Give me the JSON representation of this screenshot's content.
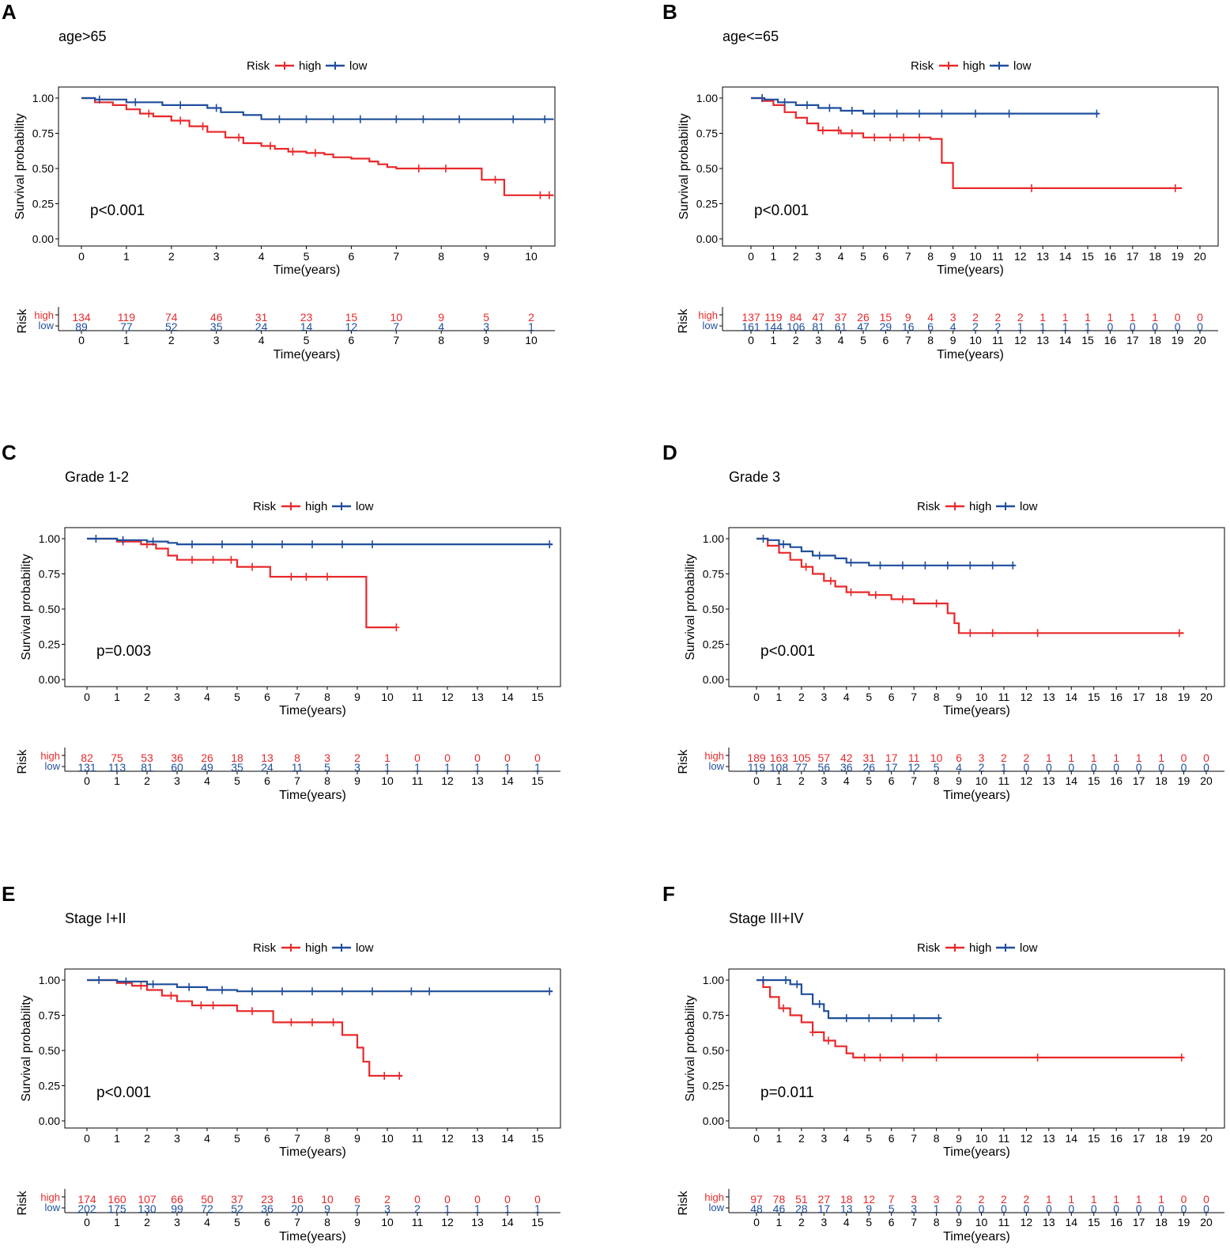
{
  "colors": {
    "high": "#e8292b",
    "low": "#1f4e9c",
    "axis": "#000000",
    "text": "#000000"
  },
  "common": {
    "legend_title": "Risk",
    "legend_high": "high",
    "legend_low": "low",
    "ylabel": "Survival probability",
    "xlabel": "Time(years)",
    "table_ylabel": "Risk",
    "table_row_high": "high",
    "table_row_low": "low",
    "yticks": [
      "0.00",
      "0.25",
      "0.50",
      "0.75",
      "1.00"
    ]
  },
  "chart_data": [
    {
      "panel": "A",
      "type": "line",
      "title": "age>65",
      "pvalue": "p<0.001",
      "xlim": [
        0,
        10
      ],
      "ylim": [
        0,
        1
      ],
      "xticks": [
        "0",
        "1",
        "2",
        "3",
        "4",
        "5",
        "6",
        "7",
        "8",
        "9",
        "10"
      ],
      "series": [
        {
          "name": "high",
          "x": [
            0,
            0.3,
            0.7,
            1.0,
            1.3,
            1.6,
            2.0,
            2.4,
            2.8,
            3.2,
            3.6,
            4.0,
            4.3,
            4.6,
            5.0,
            5.4,
            5.6,
            6.0,
            6.4,
            6.6,
            6.8,
            7.0,
            7.3,
            7.6,
            8.0,
            8.4,
            8.9,
            9.1,
            9.4,
            10.5
          ],
          "y": [
            1.0,
            0.97,
            0.95,
            0.92,
            0.89,
            0.87,
            0.84,
            0.8,
            0.76,
            0.72,
            0.68,
            0.66,
            0.64,
            0.62,
            0.61,
            0.6,
            0.58,
            0.57,
            0.55,
            0.53,
            0.51,
            0.5,
            0.5,
            0.5,
            0.5,
            0.5,
            0.42,
            0.42,
            0.31,
            0.31
          ],
          "censors": [
            1.5,
            2.2,
            2.7,
            3.5,
            4.2,
            4.7,
            5.2,
            7.5,
            8.1,
            9.2,
            10.2,
            10.4
          ]
        },
        {
          "name": "low",
          "x": [
            0,
            0.3,
            1.0,
            1.8,
            2.8,
            3.1,
            3.6,
            4.0,
            10.5
          ],
          "y": [
            1.0,
            0.99,
            0.97,
            0.95,
            0.93,
            0.9,
            0.88,
            0.85,
            0.85
          ],
          "censors": [
            0.4,
            1.2,
            2.2,
            3.0,
            4.4,
            5.0,
            5.6,
            6.2,
            7.0,
            7.6,
            8.4,
            9.6,
            10.3
          ]
        }
      ],
      "risk_table": {
        "times": [
          "0",
          "1",
          "2",
          "3",
          "4",
          "5",
          "6",
          "7",
          "8",
          "9",
          "10"
        ],
        "high": [
          "134",
          "119",
          "74",
          "46",
          "31",
          "23",
          "15",
          "10",
          "9",
          "5",
          "2"
        ],
        "low": [
          "89",
          "77",
          "52",
          "35",
          "24",
          "14",
          "12",
          "7",
          "4",
          "3",
          "1"
        ]
      }
    },
    {
      "panel": "B",
      "type": "line",
      "title": "age<=65",
      "pvalue": "p<0.001",
      "xlim": [
        0,
        20
      ],
      "ylim": [
        0,
        1
      ],
      "xticks": [
        "0",
        "1",
        "2",
        "3",
        "4",
        "5",
        "6",
        "7",
        "8",
        "9",
        "10",
        "11",
        "12",
        "13",
        "14",
        "15",
        "16",
        "17",
        "18",
        "19",
        "20"
      ],
      "series": [
        {
          "name": "high",
          "x": [
            0,
            0.5,
            1.0,
            1.5,
            2.0,
            2.5,
            3.0,
            4.0,
            5.0,
            8.0,
            8.5,
            9.0,
            19.2
          ],
          "y": [
            1.0,
            0.98,
            0.95,
            0.9,
            0.86,
            0.82,
            0.77,
            0.75,
            0.72,
            0.71,
            0.54,
            0.36,
            0.36
          ],
          "censors": [
            3.2,
            3.9,
            4.5,
            5.5,
            6.2,
            6.8,
            7.5,
            12.5,
            18.9
          ]
        },
        {
          "name": "low",
          "x": [
            0,
            0.6,
            1.2,
            2.0,
            3.0,
            4.0,
            5.0,
            15.5
          ],
          "y": [
            1.0,
            0.99,
            0.97,
            0.95,
            0.93,
            0.91,
            0.89,
            0.89
          ],
          "censors": [
            0.5,
            1.5,
            2.5,
            3.5,
            4.5,
            5.5,
            6.5,
            7.5,
            8.5,
            10.0,
            11.5,
            15.4
          ]
        }
      ],
      "risk_table": {
        "times": [
          "0",
          "1",
          "2",
          "3",
          "4",
          "5",
          "6",
          "7",
          "8",
          "9",
          "10",
          "11",
          "12",
          "13",
          "14",
          "15",
          "16",
          "17",
          "18",
          "19",
          "20"
        ],
        "high": [
          "137",
          "119",
          "84",
          "47",
          "37",
          "26",
          "15",
          "9",
          "4",
          "3",
          "2",
          "2",
          "2",
          "1",
          "1",
          "1",
          "1",
          "1",
          "1",
          "0",
          "0"
        ],
        "low": [
          "161",
          "144",
          "106",
          "81",
          "61",
          "47",
          "29",
          "16",
          "6",
          "4",
          "2",
          "2",
          "1",
          "1",
          "1",
          "1",
          "0",
          "0",
          "0",
          "0",
          "0"
        ]
      }
    },
    {
      "panel": "C",
      "type": "line",
      "title": "Grade 1-2",
      "pvalue": "p=0.003",
      "xlim": [
        0,
        15
      ],
      "ylim": [
        0,
        1
      ],
      "xticks": [
        "0",
        "1",
        "2",
        "3",
        "4",
        "5",
        "6",
        "7",
        "8",
        "9",
        "10",
        "11",
        "12",
        "13",
        "14",
        "15"
      ],
      "series": [
        {
          "name": "high",
          "x": [
            0,
            1.0,
            1.8,
            2.3,
            2.7,
            3.0,
            5.0,
            6.1,
            9.3,
            10.3
          ],
          "y": [
            1.0,
            0.98,
            0.96,
            0.93,
            0.88,
            0.85,
            0.8,
            0.73,
            0.37,
            0.37
          ],
          "censors": [
            1.2,
            2.0,
            3.5,
            4.2,
            4.8,
            5.5,
            6.8,
            7.3,
            8.0,
            10.3
          ]
        },
        {
          "name": "low",
          "x": [
            0,
            1.0,
            2.0,
            2.7,
            3.0,
            15.5
          ],
          "y": [
            1.0,
            0.99,
            0.98,
            0.97,
            0.96,
            0.96
          ],
          "censors": [
            0.3,
            1.2,
            2.2,
            3.5,
            4.5,
            5.5,
            6.5,
            7.5,
            8.5,
            9.5,
            15.4
          ]
        }
      ],
      "risk_table": {
        "times": [
          "0",
          "1",
          "2",
          "3",
          "4",
          "5",
          "6",
          "7",
          "8",
          "9",
          "10",
          "11",
          "12",
          "13",
          "14",
          "15"
        ],
        "high": [
          "82",
          "75",
          "53",
          "36",
          "26",
          "18",
          "13",
          "8",
          "3",
          "2",
          "1",
          "0",
          "0",
          "0",
          "0",
          "0"
        ],
        "low": [
          "131",
          "113",
          "81",
          "60",
          "49",
          "35",
          "24",
          "11",
          "5",
          "3",
          "1",
          "1",
          "1",
          "1",
          "1",
          "1"
        ]
      }
    },
    {
      "panel": "D",
      "type": "line",
      "title": "Grade 3",
      "pvalue": "p<0.001",
      "xlim": [
        0,
        20
      ],
      "ylim": [
        0,
        1
      ],
      "xticks": [
        "0",
        "1",
        "2",
        "3",
        "4",
        "5",
        "6",
        "7",
        "8",
        "9",
        "10",
        "11",
        "12",
        "13",
        "14",
        "15",
        "16",
        "17",
        "18",
        "19",
        "20"
      ],
      "series": [
        {
          "name": "high",
          "x": [
            0,
            0.5,
            1.0,
            1.5,
            2.0,
            2.5,
            3.0,
            3.5,
            4.0,
            5.0,
            6.0,
            7.0,
            8.5,
            8.8,
            9.0,
            19.0
          ],
          "y": [
            1.0,
            0.95,
            0.9,
            0.85,
            0.8,
            0.75,
            0.7,
            0.66,
            0.62,
            0.6,
            0.57,
            0.54,
            0.47,
            0.4,
            0.33,
            0.33
          ],
          "censors": [
            2.2,
            3.3,
            4.2,
            5.3,
            6.5,
            8.0,
            9.5,
            10.5,
            12.5,
            18.8
          ]
        },
        {
          "name": "low",
          "x": [
            0,
            0.5,
            1.0,
            1.5,
            2.0,
            2.5,
            3.5,
            4.0,
            5.0,
            11.5
          ],
          "y": [
            1.0,
            0.99,
            0.96,
            0.94,
            0.91,
            0.88,
            0.86,
            0.83,
            0.81,
            0.81
          ],
          "censors": [
            0.3,
            1.2,
            2.8,
            4.2,
            5.5,
            6.5,
            7.5,
            8.5,
            9.5,
            10.5,
            11.4
          ]
        }
      ],
      "risk_table": {
        "times": [
          "0",
          "1",
          "2",
          "3",
          "4",
          "5",
          "6",
          "7",
          "8",
          "9",
          "10",
          "11",
          "12",
          "13",
          "14",
          "15",
          "16",
          "17",
          "18",
          "19",
          "20"
        ],
        "high": [
          "189",
          "163",
          "105",
          "57",
          "42",
          "31",
          "17",
          "11",
          "10",
          "6",
          "3",
          "2",
          "2",
          "1",
          "1",
          "1",
          "1",
          "1",
          "1",
          "0",
          "0"
        ],
        "low": [
          "119",
          "108",
          "77",
          "56",
          "36",
          "26",
          "17",
          "12",
          "5",
          "4",
          "2",
          "1",
          "0",
          "0",
          "0",
          "0",
          "0",
          "0",
          "0",
          "0",
          "0"
        ]
      }
    },
    {
      "panel": "E",
      "type": "line",
      "title": "Stage I+II",
      "pvalue": "p<0.001",
      "xlim": [
        0,
        15
      ],
      "ylim": [
        0,
        1
      ],
      "xticks": [
        "0",
        "1",
        "2",
        "3",
        "4",
        "5",
        "6",
        "7",
        "8",
        "9",
        "10",
        "11",
        "12",
        "13",
        "14",
        "15"
      ],
      "series": [
        {
          "name": "high",
          "x": [
            0,
            1.0,
            1.5,
            2.0,
            2.5,
            3.0,
            3.5,
            5.0,
            6.2,
            8.5,
            9.0,
            9.2,
            9.4,
            10.5
          ],
          "y": [
            1.0,
            0.98,
            0.96,
            0.93,
            0.89,
            0.85,
            0.82,
            0.78,
            0.7,
            0.61,
            0.52,
            0.42,
            0.32,
            0.32
          ],
          "censors": [
            1.8,
            2.8,
            3.8,
            4.2,
            5.5,
            6.8,
            7.5,
            8.2,
            9.9,
            10.4
          ]
        },
        {
          "name": "low",
          "x": [
            0,
            1.0,
            2.0,
            3.0,
            4.0,
            5.0,
            15.5
          ],
          "y": [
            1.0,
            0.99,
            0.97,
            0.95,
            0.93,
            0.92,
            0.92
          ],
          "censors": [
            0.4,
            1.3,
            2.2,
            3.4,
            4.5,
            5.5,
            6.5,
            7.5,
            8.5,
            9.5,
            10.8,
            11.4,
            15.4
          ]
        }
      ],
      "risk_table": {
        "times": [
          "0",
          "1",
          "2",
          "3",
          "4",
          "5",
          "6",
          "7",
          "8",
          "9",
          "10",
          "11",
          "12",
          "13",
          "14",
          "15"
        ],
        "high": [
          "174",
          "160",
          "107",
          "66",
          "50",
          "37",
          "23",
          "16",
          "10",
          "6",
          "2",
          "0",
          "0",
          "0",
          "0",
          "0"
        ],
        "low": [
          "202",
          "175",
          "130",
          "99",
          "72",
          "52",
          "36",
          "20",
          "9",
          "7",
          "3",
          "2",
          "1",
          "1",
          "1",
          "1"
        ]
      }
    },
    {
      "panel": "F",
      "type": "line",
      "title": "Stage III+IV",
      "pvalue": "p=0.011",
      "xlim": [
        0,
        20
      ],
      "ylim": [
        0,
        1
      ],
      "xticks": [
        "0",
        "1",
        "2",
        "3",
        "4",
        "5",
        "6",
        "7",
        "8",
        "9",
        "10",
        "11",
        "12",
        "13",
        "14",
        "15",
        "16",
        "17",
        "18",
        "19",
        "20"
      ],
      "series": [
        {
          "name": "high",
          "x": [
            0,
            0.3,
            0.6,
            1.0,
            1.5,
            2.0,
            2.5,
            3.0,
            3.5,
            4.0,
            4.3,
            19.0
          ],
          "y": [
            1.0,
            0.95,
            0.88,
            0.8,
            0.75,
            0.7,
            0.63,
            0.57,
            0.53,
            0.48,
            0.45,
            0.45
          ],
          "censors": [
            1.2,
            2.5,
            3.2,
            4.8,
            5.5,
            6.5,
            8.0,
            12.5,
            18.9
          ]
        },
        {
          "name": "low",
          "x": [
            0,
            1.5,
            2.0,
            2.5,
            3.0,
            3.2,
            8.2
          ],
          "y": [
            1.0,
            0.97,
            0.9,
            0.83,
            0.78,
            0.73,
            0.73
          ],
          "censors": [
            0.3,
            1.3,
            1.8,
            2.8,
            4.0,
            5.0,
            6.0,
            7.0,
            8.1
          ]
        }
      ],
      "risk_table": {
        "times": [
          "0",
          "1",
          "2",
          "3",
          "4",
          "5",
          "6",
          "7",
          "8",
          "9",
          "10",
          "11",
          "12",
          "13",
          "14",
          "15",
          "16",
          "17",
          "18",
          "19",
          "20"
        ],
        "high": [
          "97",
          "78",
          "51",
          "27",
          "18",
          "12",
          "7",
          "3",
          "3",
          "2",
          "2",
          "2",
          "2",
          "1",
          "1",
          "1",
          "1",
          "1",
          "1",
          "0",
          "0"
        ],
        "low": [
          "48",
          "46",
          "28",
          "17",
          "13",
          "9",
          "5",
          "3",
          "1",
          "0",
          "0",
          "0",
          "0",
          "0",
          "0",
          "0",
          "0",
          "0",
          "0",
          "0",
          "0"
        ]
      }
    }
  ]
}
